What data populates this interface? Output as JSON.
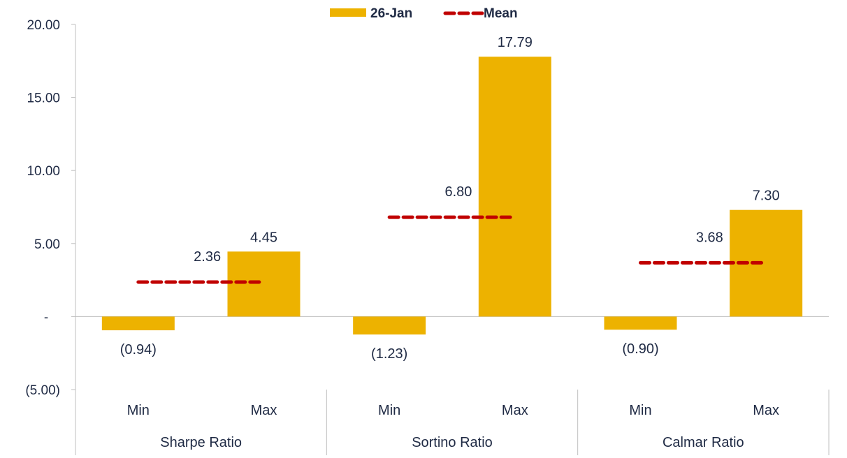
{
  "chart_data": {
    "type": "bar",
    "groups": [
      "Sharpe Ratio",
      "Sortino Ratio",
      "Calmar Ratio"
    ],
    "subcategories": [
      "Min",
      "Max"
    ],
    "series": [
      {
        "name": "26-Jan",
        "type": "bar",
        "color": "#EDB200",
        "values": [
          [
            -0.94,
            4.45
          ],
          [
            -1.23,
            17.79
          ],
          [
            -0.9,
            7.3
          ]
        ],
        "labels": [
          [
            "(0.94)",
            "4.45"
          ],
          [
            "(1.23)",
            "17.79"
          ],
          [
            "(0.90)",
            "7.30"
          ]
        ]
      },
      {
        "name": "Mean",
        "type": "line",
        "style": "dashed",
        "color": "#C00000",
        "values": [
          2.36,
          6.8,
          3.68
        ],
        "labels": [
          "2.36",
          "6.80",
          "3.68"
        ]
      }
    ],
    "y_ticks": [
      20,
      15,
      10,
      5,
      0,
      -5
    ],
    "y_tick_labels": [
      "20.00",
      "15.00",
      "10.00",
      "5.00",
      "-",
      "(5.00)"
    ],
    "ylim": [
      -5,
      20
    ],
    "legend_position": "top-center",
    "grid": false
  }
}
